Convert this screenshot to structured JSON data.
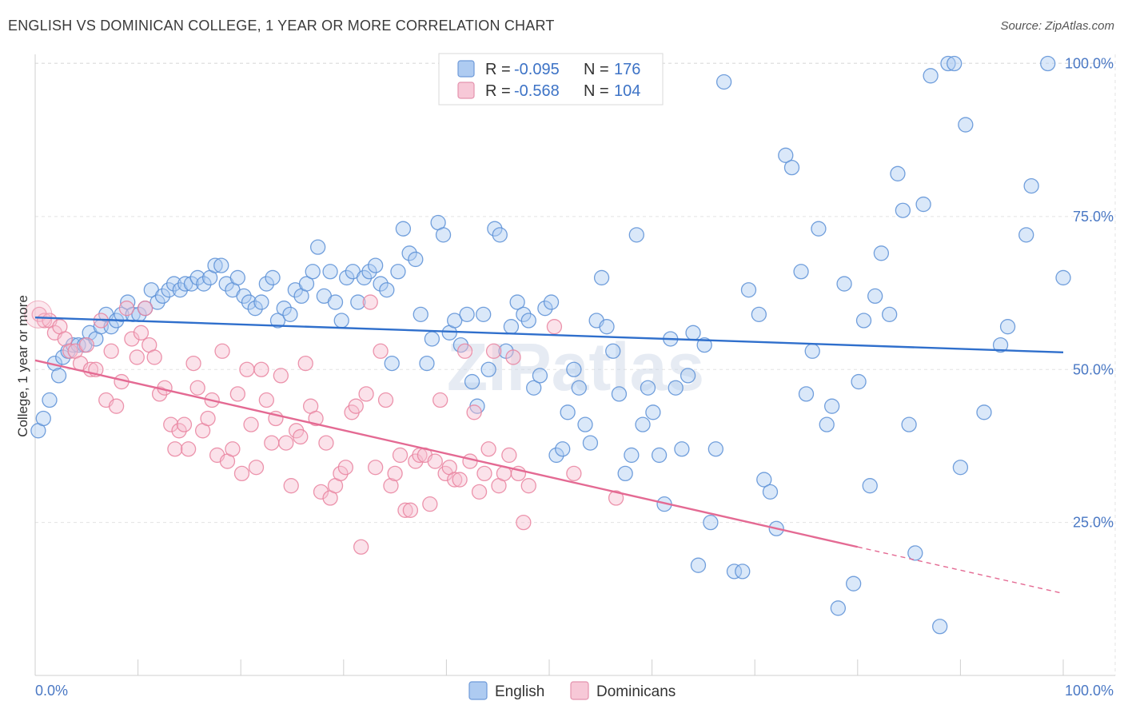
{
  "title": "ENGLISH VS DOMINICAN COLLEGE, 1 YEAR OR MORE CORRELATION CHART",
  "source": "Source: ZipAtlas.com",
  "watermark": "ZIPatlas",
  "chart_data": {
    "type": "scatter",
    "title": "ENGLISH VS DOMINICAN COLLEGE, 1 YEAR OR MORE CORRELATION CHART",
    "ylabel": "College, 1 year or more",
    "xlabel": "",
    "xlim": [
      0,
      100
    ],
    "ylim": [
      0,
      104
    ],
    "x_tick_labels": [
      "0.0%",
      "100.0%"
    ],
    "y_ticks": [
      {
        "value": 25,
        "label": "25.0%"
      },
      {
        "value": 50,
        "label": "50.0%"
      },
      {
        "value": 75,
        "label": "75.0%"
      },
      {
        "value": 100,
        "label": "100.0%"
      }
    ],
    "grid": true,
    "legend_position": "top-center",
    "stats": [
      {
        "r_label": "R =",
        "r_value": "-0.095",
        "n_label": "N =",
        "n_value": "176",
        "color": "#8fb4ea"
      },
      {
        "r_label": "R =",
        "r_value": "-0.568",
        "n_label": "N =",
        "n_value": "104",
        "color": "#f3a6c1"
      }
    ],
    "series": [
      {
        "name": "English",
        "color": "#5b8fd6",
        "fill": "#aecbf1",
        "trend": {
          "x0": 0,
          "y0": 58.5,
          "x1": 100,
          "y1": 52.8,
          "color": "#2f6fcc"
        },
        "points": [
          [
            0.3,
            40
          ],
          [
            0.8,
            42
          ],
          [
            1.4,
            45
          ],
          [
            1.9,
            51
          ],
          [
            2.3,
            49
          ],
          [
            2.7,
            52
          ],
          [
            3.2,
            53
          ],
          [
            3.7,
            54
          ],
          [
            4.2,
            54
          ],
          [
            4.8,
            54
          ],
          [
            5.3,
            56
          ],
          [
            5.9,
            55
          ],
          [
            6.4,
            57
          ],
          [
            6.9,
            59
          ],
          [
            7.4,
            57
          ],
          [
            7.9,
            58
          ],
          [
            8.4,
            59
          ],
          [
            9.0,
            61
          ],
          [
            9.5,
            59
          ],
          [
            10.1,
            59
          ],
          [
            10.7,
            60
          ],
          [
            11.3,
            63
          ],
          [
            11.9,
            61
          ],
          [
            12.4,
            62
          ],
          [
            13.0,
            63
          ],
          [
            13.5,
            64
          ],
          [
            14.1,
            63
          ],
          [
            14.6,
            64
          ],
          [
            15.2,
            64
          ],
          [
            15.8,
            65
          ],
          [
            16.4,
            64
          ],
          [
            17.0,
            65
          ],
          [
            17.5,
            67
          ],
          [
            18.1,
            67
          ],
          [
            18.6,
            64
          ],
          [
            19.2,
            63
          ],
          [
            19.7,
            65
          ],
          [
            20.3,
            62
          ],
          [
            20.8,
            61
          ],
          [
            21.4,
            60
          ],
          [
            22.0,
            61
          ],
          [
            22.5,
            64
          ],
          [
            23.1,
            65
          ],
          [
            23.6,
            58
          ],
          [
            24.2,
            60
          ],
          [
            24.8,
            59
          ],
          [
            25.3,
            63
          ],
          [
            25.9,
            62
          ],
          [
            26.4,
            64
          ],
          [
            27.0,
            66
          ],
          [
            27.5,
            70
          ],
          [
            28.1,
            62
          ],
          [
            28.7,
            66
          ],
          [
            29.2,
            61
          ],
          [
            29.8,
            58
          ],
          [
            30.3,
            65
          ],
          [
            30.9,
            66
          ],
          [
            31.4,
            61
          ],
          [
            32.0,
            65
          ],
          [
            32.5,
            66
          ],
          [
            33.1,
            67
          ],
          [
            33.6,
            64
          ],
          [
            34.2,
            63
          ],
          [
            34.7,
            51
          ],
          [
            35.3,
            66
          ],
          [
            35.8,
            73
          ],
          [
            36.4,
            69
          ],
          [
            37.0,
            68
          ],
          [
            37.5,
            59
          ],
          [
            38.1,
            51
          ],
          [
            38.6,
            55
          ],
          [
            39.2,
            74
          ],
          [
            39.7,
            72
          ],
          [
            40.3,
            56
          ],
          [
            40.8,
            58
          ],
          [
            41.4,
            54
          ],
          [
            42.0,
            59
          ],
          [
            42.5,
            48
          ],
          [
            43.0,
            44
          ],
          [
            43.6,
            59
          ],
          [
            44.1,
            50
          ],
          [
            44.7,
            73
          ],
          [
            45.2,
            72
          ],
          [
            45.8,
            53
          ],
          [
            46.3,
            57
          ],
          [
            46.9,
            61
          ],
          [
            47.5,
            59
          ],
          [
            48.0,
            58
          ],
          [
            48.5,
            47
          ],
          [
            49.1,
            49
          ],
          [
            49.6,
            60
          ],
          [
            50.2,
            61
          ],
          [
            50.7,
            36
          ],
          [
            51.3,
            37
          ],
          [
            51.8,
            43
          ],
          [
            52.4,
            50
          ],
          [
            52.9,
            47
          ],
          [
            53.5,
            41
          ],
          [
            54.0,
            38
          ],
          [
            54.6,
            58
          ],
          [
            55.1,
            65
          ],
          [
            55.6,
            57
          ],
          [
            56.2,
            53
          ],
          [
            56.8,
            46
          ],
          [
            57.4,
            33
          ],
          [
            58.0,
            36
          ],
          [
            58.5,
            72
          ],
          [
            59.1,
            41
          ],
          [
            59.6,
            47
          ],
          [
            60.1,
            43
          ],
          [
            60.7,
            36
          ],
          [
            61.2,
            28
          ],
          [
            61.8,
            55
          ],
          [
            62.3,
            47
          ],
          [
            62.9,
            37
          ],
          [
            63.5,
            49
          ],
          [
            64.0,
            56
          ],
          [
            64.5,
            18
          ],
          [
            65.1,
            54
          ],
          [
            65.7,
            25
          ],
          [
            66.2,
            37
          ],
          [
            67.0,
            97
          ],
          [
            68.0,
            17
          ],
          [
            68.8,
            17
          ],
          [
            69.4,
            63
          ],
          [
            70.4,
            59
          ],
          [
            70.9,
            32
          ],
          [
            71.5,
            30
          ],
          [
            72.1,
            24
          ],
          [
            73.0,
            85
          ],
          [
            73.6,
            83
          ],
          [
            74.5,
            66
          ],
          [
            75.0,
            46
          ],
          [
            75.6,
            53
          ],
          [
            76.2,
            73
          ],
          [
            77.0,
            41
          ],
          [
            77.5,
            44
          ],
          [
            78.1,
            11
          ],
          [
            78.7,
            64
          ],
          [
            79.6,
            15
          ],
          [
            80.1,
            48
          ],
          [
            80.6,
            58
          ],
          [
            81.2,
            31
          ],
          [
            81.7,
            62
          ],
          [
            82.3,
            69
          ],
          [
            83.1,
            59
          ],
          [
            83.9,
            82
          ],
          [
            84.4,
            76
          ],
          [
            85.0,
            41
          ],
          [
            85.6,
            20
          ],
          [
            86.4,
            77
          ],
          [
            87.1,
            98
          ],
          [
            88.0,
            8
          ],
          [
            88.8,
            100
          ],
          [
            89.4,
            100
          ],
          [
            90.0,
            34
          ],
          [
            90.5,
            90
          ],
          [
            92.3,
            43
          ],
          [
            93.9,
            54
          ],
          [
            94.6,
            57
          ],
          [
            96.4,
            72
          ],
          [
            96.9,
            80
          ],
          [
            98.5,
            100
          ],
          [
            100.0,
            65
          ]
        ]
      },
      {
        "name": "Dominicans",
        "color": "#e9839f",
        "fill": "#f7bfd1",
        "trend": {
          "x0": 0,
          "y0": 51.5,
          "x1": 80,
          "y1": 21,
          "color": "#e46a93"
        },
        "trend_dashed": {
          "x0": 80,
          "y0": 21,
          "x1": 100,
          "y1": 13.4
        },
        "points": [
          [
            0.4,
            59
          ],
          [
            0.9,
            58
          ],
          [
            1.4,
            58
          ],
          [
            1.9,
            56
          ],
          [
            2.4,
            57
          ],
          [
            2.9,
            55
          ],
          [
            3.4,
            53
          ],
          [
            3.9,
            53
          ],
          [
            4.4,
            51
          ],
          [
            5.0,
            54
          ],
          [
            5.4,
            50
          ],
          [
            5.9,
            50
          ],
          [
            6.4,
            58
          ],
          [
            6.9,
            45
          ],
          [
            7.4,
            53
          ],
          [
            7.9,
            44
          ],
          [
            8.4,
            48
          ],
          [
            8.9,
            60
          ],
          [
            9.4,
            55
          ],
          [
            9.9,
            52
          ],
          [
            10.3,
            56
          ],
          [
            10.7,
            60
          ],
          [
            11.1,
            54
          ],
          [
            11.6,
            52
          ],
          [
            12.1,
            46
          ],
          [
            12.6,
            47
          ],
          [
            13.2,
            41
          ],
          [
            13.6,
            37
          ],
          [
            14.0,
            40
          ],
          [
            14.5,
            41
          ],
          [
            14.9,
            37
          ],
          [
            15.4,
            51
          ],
          [
            15.8,
            47
          ],
          [
            16.3,
            40
          ],
          [
            16.8,
            42
          ],
          [
            17.2,
            45
          ],
          [
            17.7,
            36
          ],
          [
            18.2,
            53
          ],
          [
            18.7,
            35
          ],
          [
            19.2,
            37
          ],
          [
            19.7,
            46
          ],
          [
            20.1,
            33
          ],
          [
            20.6,
            50
          ],
          [
            21.0,
            41
          ],
          [
            21.5,
            34
          ],
          [
            22.0,
            50
          ],
          [
            22.5,
            45
          ],
          [
            23.0,
            38
          ],
          [
            23.4,
            42
          ],
          [
            23.9,
            49
          ],
          [
            24.4,
            38
          ],
          [
            24.9,
            31
          ],
          [
            25.4,
            40
          ],
          [
            25.8,
            39
          ],
          [
            26.3,
            51
          ],
          [
            26.8,
            44
          ],
          [
            27.3,
            42
          ],
          [
            27.8,
            30
          ],
          [
            28.3,
            38
          ],
          [
            28.7,
            29
          ],
          [
            29.2,
            31
          ],
          [
            29.7,
            33
          ],
          [
            30.2,
            34
          ],
          [
            30.8,
            43
          ],
          [
            31.2,
            44
          ],
          [
            31.7,
            21
          ],
          [
            32.2,
            46
          ],
          [
            32.6,
            61
          ],
          [
            33.1,
            34
          ],
          [
            33.6,
            53
          ],
          [
            34.1,
            45
          ],
          [
            34.6,
            31
          ],
          [
            35.0,
            33
          ],
          [
            35.5,
            36
          ],
          [
            36.0,
            27
          ],
          [
            36.5,
            27
          ],
          [
            37.0,
            35
          ],
          [
            37.4,
            36
          ],
          [
            37.9,
            36
          ],
          [
            38.4,
            28
          ],
          [
            38.9,
            35
          ],
          [
            39.4,
            45
          ],
          [
            39.9,
            33
          ],
          [
            40.3,
            34
          ],
          [
            40.8,
            32
          ],
          [
            41.3,
            32
          ],
          [
            41.8,
            53
          ],
          [
            42.3,
            35
          ],
          [
            42.7,
            43
          ],
          [
            43.2,
            30
          ],
          [
            43.7,
            33
          ],
          [
            44.1,
            37
          ],
          [
            44.6,
            53
          ],
          [
            45.1,
            31
          ],
          [
            45.6,
            33
          ],
          [
            46.1,
            36
          ],
          [
            46.5,
            52
          ],
          [
            47.0,
            33
          ],
          [
            47.5,
            25
          ],
          [
            48.0,
            31
          ],
          [
            50.5,
            57
          ],
          [
            52.4,
            33
          ],
          [
            56.5,
            29
          ]
        ]
      }
    ]
  }
}
